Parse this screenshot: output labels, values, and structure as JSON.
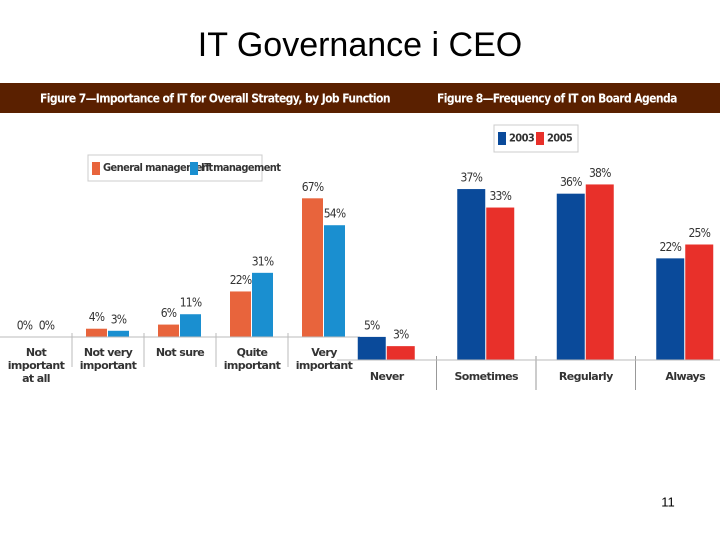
{
  "title": "IT Governance i CEO",
  "page_number": "11",
  "chart_data": [
    {
      "type": "bar",
      "title": "Figure 7—Importance of IT for Overall Strategy, by Job Function",
      "categories": [
        "Not important at all",
        "Not very important",
        "Not sure",
        "Quite important",
        "Very important"
      ],
      "series": [
        {
          "name": "General management",
          "color": "#e8643c",
          "values": [
            0,
            4,
            6,
            22,
            67
          ],
          "value_labels": [
            "0%",
            "4%",
            "6%",
            "22%",
            "67%"
          ]
        },
        {
          "name": "IT management",
          "color": "#1a8fd0",
          "values": [
            0,
            3,
            11,
            31,
            54
          ],
          "value_labels": [
            "0%",
            "3%",
            "11%",
            "31%",
            "54%"
          ]
        }
      ]
    },
    {
      "type": "bar",
      "title": "Figure 8—Frequency of IT on Board Agenda",
      "categories": [
        "Never",
        "Sometimes",
        "Regularly",
        "Always"
      ],
      "series": [
        {
          "name": "2003",
          "color": "#0a4a9a",
          "values": [
            5,
            37,
            36,
            22
          ],
          "value_labels": [
            "5%",
            "37%",
            "36%",
            "22%"
          ]
        },
        {
          "name": "2005",
          "color": "#e8302a",
          "values": [
            3,
            33,
            38,
            25
          ],
          "value_labels": [
            "3%",
            "33%",
            "38%",
            "25%"
          ]
        }
      ]
    }
  ]
}
